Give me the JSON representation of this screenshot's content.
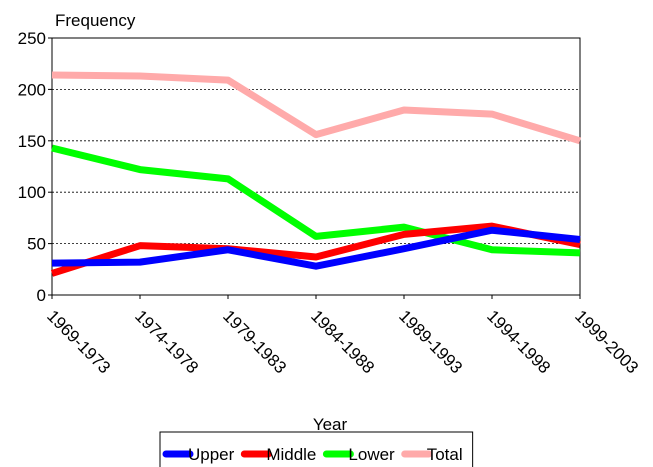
{
  "chart_data": {
    "type": "line",
    "y_label": "Frequency",
    "x_label": "Year",
    "categories": [
      "1969-1973",
      "1974-1978",
      "1979-1983",
      "1984-1988",
      "1989-1993",
      "1994-1998",
      "1999-2003"
    ],
    "series": [
      {
        "name": "Upper",
        "color": "#0000ff",
        "values": [
          31,
          32,
          44,
          28,
          45,
          63,
          54
        ]
      },
      {
        "name": "Middle",
        "color": "#ff0000",
        "values": [
          21,
          48,
          45,
          37,
          59,
          67,
          49
        ]
      },
      {
        "name": "Lower",
        "color": "#00ff00",
        "values": [
          143,
          122,
          113,
          57,
          66,
          44,
          41
        ]
      },
      {
        "name": "Total",
        "color": "#ffaaaa",
        "values": [
          214,
          213,
          209,
          156,
          180,
          176,
          150
        ]
      }
    ],
    "ylim": [
      0,
      250
    ],
    "yticks": [
      0,
      50,
      100,
      150,
      200,
      250
    ],
    "grid": true
  }
}
